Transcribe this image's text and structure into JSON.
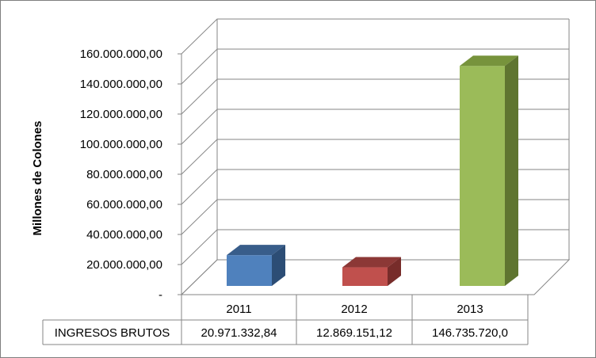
{
  "chart_data": {
    "type": "bar",
    "title": "",
    "xlabel": "",
    "ylabel": "Millones de Colones",
    "ylim": [
      0,
      160000000
    ],
    "y_ticks": [
      0,
      20000000,
      40000000,
      60000000,
      80000000,
      100000000,
      120000000,
      140000000,
      160000000
    ],
    "y_tick_labels": [
      "-",
      "20.000.000,00",
      "40.000.000,00",
      "60.000.000,00",
      "80.000.000,00",
      "100.000.000,00",
      "120.000.000,00",
      "140.000.000,00",
      "160.000.000,00"
    ],
    "categories": [
      "2011",
      "2012",
      "2013"
    ],
    "series": [
      {
        "name": "INGRESOS BRUTOS",
        "values": [
          20971332.84,
          12869151.12,
          146735720.0
        ],
        "value_labels": [
          "20.971.332,84",
          "12.869.151,12",
          "146.735.720,0"
        ]
      }
    ],
    "bar_colors": [
      "#4f81bd",
      "#c0504d",
      "#9bbb59"
    ],
    "bar_top_colors": [
      "#385d8a",
      "#8c3836",
      "#77933c"
    ],
    "bar_side_colors": [
      "#2c4d75",
      "#772c2a",
      "#5f7530"
    ],
    "grid": true,
    "data_table": true,
    "legend": "none"
  }
}
